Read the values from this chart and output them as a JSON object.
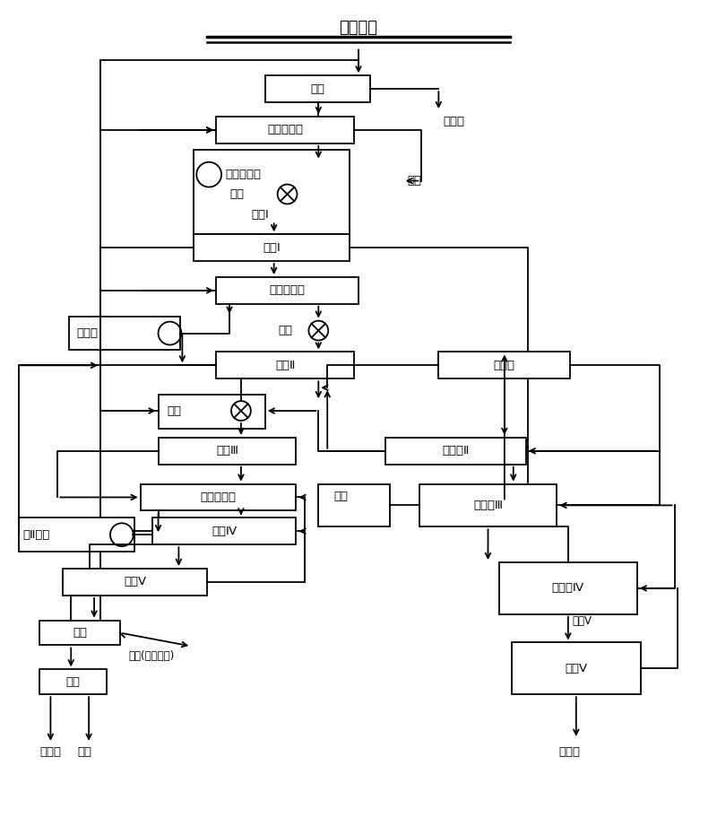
{
  "bg": "#ffffff",
  "lw": 1.3,
  "fs": 9.5,
  "title": "粗选泡沫",
  "note_yiliushui": "溢流水",
  "note_yiliu": "溢流",
  "note_saojing": "扫精",
  "note_moly": "钼精矿",
  "note_zhengqi": "蒸汽",
  "note_lvye": "滤液(去沉淀池)",
  "note_jingsawei": "精扫尾",
  "label_nongmi": "浓密",
  "label_slxlq1": "水力旋流器",
  "label_cgkzm": "粗精矿再磨",
  "label_jiaoba1": "搅拌",
  "label_jxI": "精选Ⅰ",
  "label_slxlq2": "水力旋流器",
  "label_jizaimo": "精再磨",
  "label_jiaoba2": "搅拌",
  "label_jxII": "精选Ⅱ",
  "label_jsxI": "精扫选",
  "label_jiaoba3": "搅拌",
  "label_jxIII": "精选Ⅲ",
  "label_slxlq3": "水力旋流器",
  "label_jIIIzm": "精Ⅱ再磨",
  "label_jxIV": "精选Ⅳ",
  "label_jxV": "精选Ⅴ",
  "label_guolv": "过滤",
  "label_ganzao": "干燥",
  "label_jsxII": "精扫选Ⅱ",
  "label_jsxIII": "精扫选Ⅲ",
  "label_jsxIV": "精扫选Ⅳ",
  "label_jsV": "精扫Ⅴ"
}
